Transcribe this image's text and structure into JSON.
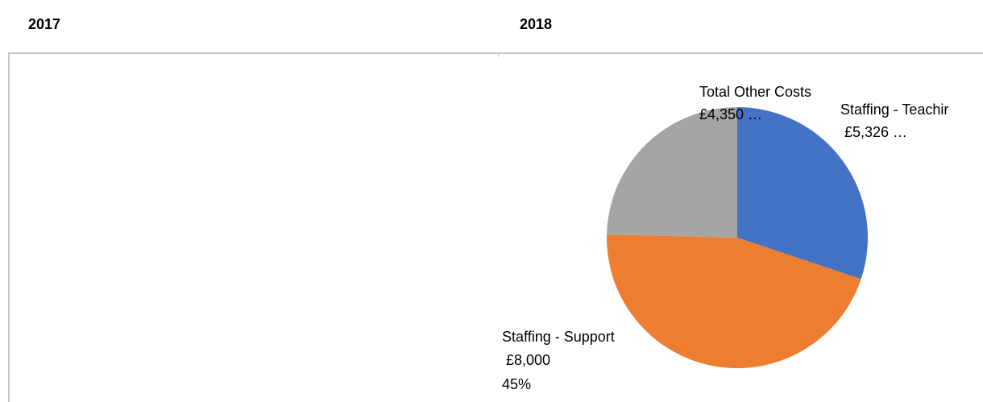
{
  "headers": {
    "left_year": "2017",
    "right_year": "2018"
  },
  "chart_data": [
    {
      "type": "pie",
      "panel": "2017",
      "slices": []
    },
    {
      "type": "pie",
      "panel": "2018",
      "slices": [
        {
          "name": "Staffing - Teachir",
          "value": 5326,
          "percent": 30,
          "value_label": " £5,326 …",
          "color": "#4472c4"
        },
        {
          "name": "Staffing - Support",
          "value": 8000,
          "percent": 45,
          "value_label": " £8,000",
          "percent_label": "45%",
          "color": "#ed7d31"
        },
        {
          "name": "Total Other Costs",
          "value": 4350,
          "percent": 25,
          "value_label": "£4,350 …",
          "color": "#a5a5a5"
        }
      ],
      "legend": "none"
    }
  ]
}
